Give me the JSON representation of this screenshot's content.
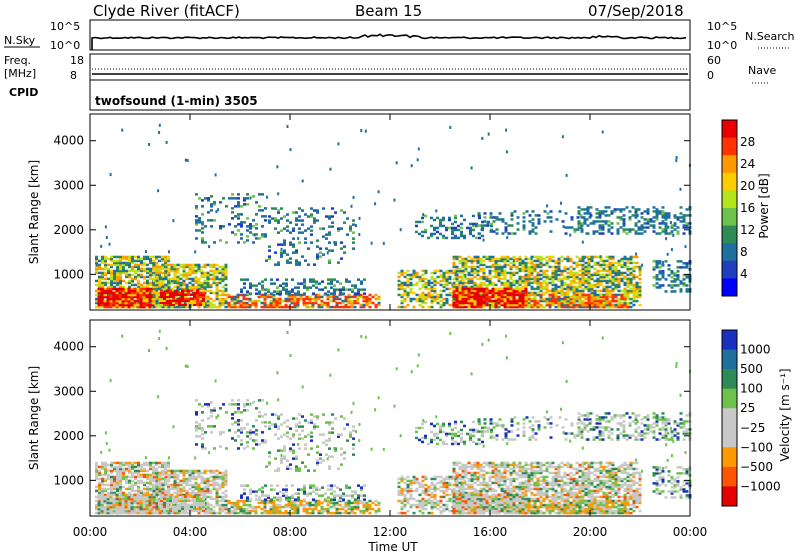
{
  "header": {
    "title": "Clyde River (fitACF)",
    "beam": "Beam 15",
    "date": "07/Sep/2018"
  },
  "aux_panels": {
    "nsky_label": "N.Sky",
    "nsearch_label": "N.Search",
    "nsky_ticks": [
      "10^5",
      "10^0"
    ],
    "nsearch_ticks": [
      "10^5",
      "10^0"
    ],
    "freq_label_1": "Freq.",
    "freq_label_2": "[MHz]",
    "freq_ticks": [
      "18",
      "8"
    ],
    "nave_label": "Nave",
    "nave_ticks": [
      "60",
      "0"
    ],
    "cpid_label": "CPID",
    "cpid_text": "twofsound (1-min) 3505"
  },
  "chart_data": [
    {
      "type": "heatmap",
      "name": "power",
      "ylabel": "Slant Range [km]",
      "yticks": [
        1000,
        2000,
        3000,
        4000
      ],
      "ylim": [
        200,
        4600
      ],
      "xlim_hours": [
        0,
        24
      ],
      "colorbar": {
        "label": "Power [dB]",
        "ticks": [
          "28",
          "24",
          "20",
          "16",
          "12",
          "8",
          "4"
        ],
        "colors": [
          "#e60000",
          "#ff3300",
          "#ff9900",
          "#ffcc00",
          "#b5e61d",
          "#6cc24a",
          "#2e8b57",
          "#1f6f9f",
          "#1f3fbf",
          "#0000ff"
        ]
      }
    },
    {
      "type": "heatmap",
      "name": "velocity",
      "ylabel": "Slant Range [km]",
      "yticks": [
        1000,
        2000,
        3000,
        4000
      ],
      "ylim": [
        200,
        4600
      ],
      "xlim_hours": [
        0,
        24
      ],
      "colorbar": {
        "label": "Velocity [m s⁻¹]",
        "ticks": [
          "1000",
          "500",
          "100",
          "25",
          "−25",
          "−100",
          "−500",
          "−1000"
        ],
        "colors": [
          "#1a2fbf",
          "#1f6f9f",
          "#2e8b57",
          "#6cc24a",
          "#c8c8c8",
          "#c8c8c8",
          "#ff9900",
          "#ff5500",
          "#e60000"
        ]
      }
    }
  ],
  "xaxis": {
    "label": "Time UT",
    "ticks": [
      "00:00",
      "04:00",
      "08:00",
      "12:00",
      "16:00",
      "20:00",
      "00:00"
    ]
  }
}
